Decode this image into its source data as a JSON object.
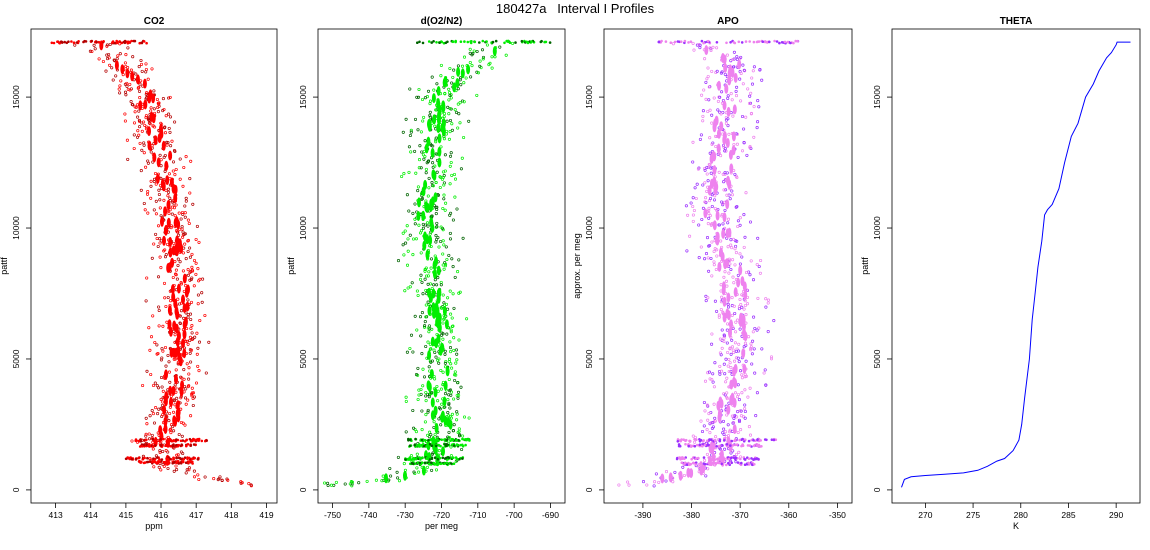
{
  "figure_title": "180427a   Interval I Profiles",
  "chart_data": [
    {
      "type": "scatter",
      "title": "CO2",
      "xlabel": "ppm",
      "ylabel": "pattf",
      "xlim": [
        412.3,
        419.3
      ],
      "ylim": [
        -500,
        17600
      ],
      "xticks": [
        413,
        414,
        415,
        416,
        417,
        418,
        419
      ],
      "yticks": [
        0,
        5000,
        10000,
        15000
      ],
      "colors": {
        "primary": "#ff0000",
        "secondary": "#b30000"
      },
      "profile": [
        [
          412.9,
          17100
        ],
        [
          413.5,
          17100
        ],
        [
          414.2,
          17050
        ],
        [
          414.6,
          16700
        ],
        [
          414.9,
          16500
        ],
        [
          415.0,
          16200
        ],
        [
          415.2,
          15800
        ],
        [
          415.4,
          15300
        ],
        [
          415.6,
          14800
        ],
        [
          415.7,
          14200
        ],
        [
          415.8,
          13500
        ],
        [
          416.0,
          12800
        ],
        [
          416.1,
          12000
        ],
        [
          416.2,
          11000
        ],
        [
          416.3,
          10000
        ],
        [
          416.4,
          9000
        ],
        [
          416.5,
          8000
        ],
        [
          416.5,
          7000
        ],
        [
          416.5,
          6000
        ],
        [
          416.4,
          5000
        ],
        [
          416.4,
          4000
        ],
        [
          416.3,
          3000
        ],
        [
          416.2,
          2500
        ],
        [
          416.0,
          1900
        ],
        [
          416.1,
          1500
        ],
        [
          416.0,
          1100
        ],
        [
          416.5,
          800
        ],
        [
          417.2,
          600
        ],
        [
          417.6,
          400
        ],
        [
          418.2,
          300
        ],
        [
          418.6,
          250
        ]
      ],
      "bands": [
        {
          "y": 17100,
          "x_from": 412.8,
          "x_to": 415.6
        },
        {
          "y": 1900,
          "x_from": 415.2,
          "x_to": 417.3
        },
        {
          "y": 1700,
          "x_from": 415.4,
          "x_to": 417.0
        },
        {
          "y": 1200,
          "x_from": 415.0,
          "x_to": 417.1
        },
        {
          "y": 1050,
          "x_from": 415.3,
          "x_to": 416.9
        }
      ],
      "scatter_spread": 0.45
    },
    {
      "type": "scatter",
      "title": "d(O2/N2)",
      "xlabel": "per meg",
      "ylabel": "pattf",
      "xlim": [
        -754,
        -686
      ],
      "ylim": [
        -500,
        17600
      ],
      "xticks": [
        -750,
        -740,
        -730,
        -720,
        -710,
        -700,
        -690
      ],
      "yticks": [
        0,
        5000,
        10000,
        15000
      ],
      "colors": {
        "primary": "#00ee00",
        "secondary": "#006400"
      },
      "profile": [
        [
          -690,
          17100
        ],
        [
          -700,
          17050
        ],
        [
          -707,
          16800
        ],
        [
          -712,
          16300
        ],
        [
          -716,
          15800
        ],
        [
          -719,
          15200
        ],
        [
          -721,
          14500
        ],
        [
          -722,
          13500
        ],
        [
          -723,
          12500
        ],
        [
          -723,
          11500
        ],
        [
          -724,
          10500
        ],
        [
          -724,
          9500
        ],
        [
          -722,
          8500
        ],
        [
          -722,
          7500
        ],
        [
          -721,
          6500
        ],
        [
          -721,
          5500
        ],
        [
          -721,
          4500
        ],
        [
          -721,
          3500
        ],
        [
          -720,
          2500
        ],
        [
          -721,
          1900
        ],
        [
          -722,
          1500
        ],
        [
          -723,
          1100
        ],
        [
          -727,
          700
        ],
        [
          -735,
          400
        ],
        [
          -740,
          300
        ],
        [
          -746,
          500
        ]
      ],
      "bands": [
        {
          "y": 17100,
          "x_from": -727,
          "x_to": -690
        },
        {
          "y": 1900,
          "x_from": -730,
          "x_to": -712
        },
        {
          "y": 1700,
          "x_from": -729,
          "x_to": -713
        },
        {
          "y": 1200,
          "x_from": -731,
          "x_to": -714
        },
        {
          "y": 1000,
          "x_from": -729,
          "x_to": -716
        }
      ],
      "scatter_spread": 4.5
    },
    {
      "type": "scatter",
      "title": "APO",
      "xlabel": "",
      "ylabel": "approx. per meg",
      "xlim": [
        -398,
        -347
      ],
      "ylim": [
        -500,
        17600
      ],
      "xticks": [
        -390,
        -380,
        -370,
        -360,
        -350
      ],
      "yticks": [
        0,
        5000,
        10000,
        15000
      ],
      "colors": {
        "primary": "#ee82ee",
        "secondary": "#9b30ff"
      },
      "profile": [
        [
          -385,
          17100
        ],
        [
          -378,
          17050
        ],
        [
          -374,
          16700
        ],
        [
          -372,
          16200
        ],
        [
          -372,
          15500
        ],
        [
          -373,
          14500
        ],
        [
          -373,
          13500
        ],
        [
          -374,
          12500
        ],
        [
          -374,
          11500
        ],
        [
          -375,
          10500
        ],
        [
          -374,
          9500
        ],
        [
          -372,
          8500
        ],
        [
          -371,
          7500
        ],
        [
          -371,
          6500
        ],
        [
          -371,
          5500
        ],
        [
          -371,
          4500
        ],
        [
          -372,
          3500
        ],
        [
          -373,
          2500
        ],
        [
          -374,
          1900
        ],
        [
          -374,
          1500
        ],
        [
          -374,
          1100
        ],
        [
          -380,
          700
        ],
        [
          -385,
          400
        ],
        [
          -390,
          250
        ]
      ],
      "bands": [
        {
          "y": 17100,
          "x_from": -387,
          "x_to": -358
        },
        {
          "y": 1900,
          "x_from": -384,
          "x_to": -362
        },
        {
          "y": 1700,
          "x_from": -383,
          "x_to": -365
        },
        {
          "y": 1200,
          "x_from": -383,
          "x_to": -366
        },
        {
          "y": 1000,
          "x_from": -382,
          "x_to": -367
        }
      ],
      "scatter_spread": 3.8
    },
    {
      "type": "line",
      "title": "THETA",
      "xlabel": "K",
      "ylabel": "pattf",
      "xlim": [
        266.5,
        292.5
      ],
      "ylim": [
        -500,
        17600
      ],
      "xticks": [
        270,
        275,
        280,
        285,
        290
      ],
      "yticks": [
        0,
        5000,
        10000,
        15000
      ],
      "colors": {
        "primary": "#0000ff"
      },
      "x": [
        267.5,
        267.8,
        268.5,
        270,
        272,
        274,
        275.5,
        276.5,
        277.5,
        278.3,
        279.2,
        279.8,
        280.1,
        280.4,
        280.9,
        281.2,
        281.5,
        281.8,
        282.2,
        282.5,
        282.8,
        283.3,
        284.0,
        284.6,
        285.3,
        286.0,
        286.8,
        287.6,
        288.2,
        289.0,
        289.5,
        290.0,
        290.1,
        291.5
      ],
      "y": [
        100,
        400,
        500,
        550,
        600,
        650,
        750,
        900,
        1100,
        1200,
        1500,
        1900,
        2500,
        3500,
        5000,
        6500,
        7500,
        8500,
        9500,
        10500,
        10700,
        10900,
        11500,
        12500,
        13500,
        14000,
        15000,
        15500,
        16000,
        16500,
        16700,
        17000,
        17100,
        17100
      ]
    }
  ]
}
